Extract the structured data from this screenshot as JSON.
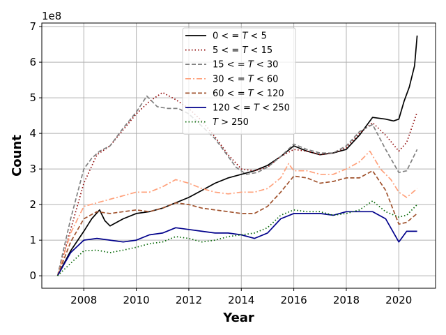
{
  "chart_data": {
    "type": "line",
    "title": "",
    "xlabel": "Year",
    "ylabel": "Count",
    "y_offset_label": "1e8",
    "y_scale": 100000000,
    "xlim": [
      2006.4,
      2021.4
    ],
    "ylim": [
      -0.35,
      7.1
    ],
    "x_ticks": [
      2008,
      2010,
      2012,
      2014,
      2016,
      2018,
      2020
    ],
    "x_tick_labels": [
      "2008",
      "2010",
      "2012",
      "2014",
      "2016",
      "2018",
      "2020"
    ],
    "y_ticks": [
      0,
      1,
      2,
      3,
      4,
      5,
      6,
      7
    ],
    "y_tick_labels": [
      "0",
      "1",
      "2",
      "3",
      "4",
      "5",
      "6",
      "7"
    ],
    "grid": true,
    "legend_position": "top-center",
    "series": [
      {
        "name": "0 < = T < 5",
        "label_main": "0 < = ",
        "label_var": "T",
        "label_tail": " < 5",
        "color": "#000000",
        "style": "solid",
        "x": [
          2007.0,
          2007.5,
          2008.0,
          2008.3,
          2008.6,
          2008.8,
          2009.0,
          2009.5,
          2010.0,
          2010.5,
          2011.0,
          2011.5,
          2012.0,
          2012.5,
          2013.0,
          2013.5,
          2014.0,
          2014.5,
          2015.0,
          2015.5,
          2016.0,
          2016.5,
          2017.0,
          2017.5,
          2018.0,
          2018.5,
          2019.0,
          2019.5,
          2019.8,
          2020.0,
          2020.2,
          2020.4,
          2020.6,
          2020.7
        ],
        "y": [
          0.0,
          0.7,
          1.25,
          1.6,
          1.85,
          1.55,
          1.4,
          1.6,
          1.75,
          1.8,
          1.9,
          2.05,
          2.2,
          2.4,
          2.6,
          2.75,
          2.85,
          2.95,
          3.1,
          3.35,
          3.65,
          3.5,
          3.4,
          3.45,
          3.55,
          3.95,
          4.45,
          4.4,
          4.35,
          4.4,
          4.9,
          5.3,
          5.9,
          6.75
        ]
      },
      {
        "name": "5 < = T < 15",
        "label_main": "5 < = ",
        "label_var": "T",
        "label_tail": " < 15",
        "color": "#8b0000",
        "style": "dotted",
        "x": [
          2007.0,
          2007.5,
          2008.0,
          2008.5,
          2009.0,
          2009.5,
          2010.0,
          2010.5,
          2011.0,
          2011.5,
          2012.0,
          2012.5,
          2013.0,
          2013.5,
          2014.0,
          2014.5,
          2015.0,
          2015.5,
          2016.0,
          2016.5,
          2017.0,
          2017.5,
          2018.0,
          2018.5,
          2019.0,
          2019.5,
          2020.0,
          2020.3,
          2020.7
        ],
        "y": [
          0.0,
          1.3,
          2.6,
          3.4,
          3.65,
          4.1,
          4.55,
          4.9,
          5.15,
          4.95,
          4.7,
          4.35,
          3.9,
          3.4,
          3.0,
          2.95,
          3.05,
          3.35,
          3.55,
          3.5,
          3.4,
          3.45,
          3.6,
          4.0,
          4.3,
          3.95,
          3.5,
          3.75,
          4.6
        ]
      },
      {
        "name": "15 < = T < 30",
        "label_main": "15 < = ",
        "label_var": "T",
        "label_tail": " < 30",
        "color": "#808080",
        "style": "dashed",
        "x": [
          2007.0,
          2007.5,
          2008.0,
          2008.3,
          2008.6,
          2009.0,
          2009.5,
          2010.0,
          2010.4,
          2010.8,
          2011.2,
          2011.6,
          2012.0,
          2012.5,
          2013.0,
          2013.4,
          2013.8,
          2014.2,
          2014.6,
          2015.0,
          2015.5,
          2016.0,
          2016.5,
          2017.0,
          2017.5,
          2018.0,
          2018.5,
          2019.0,
          2019.5,
          2020.0,
          2020.3,
          2020.7
        ],
        "y": [
          0.0,
          1.6,
          3.0,
          3.3,
          3.5,
          3.65,
          4.15,
          4.6,
          5.05,
          4.75,
          4.7,
          4.7,
          4.55,
          4.2,
          3.85,
          3.45,
          3.05,
          2.85,
          2.9,
          3.05,
          3.35,
          3.7,
          3.55,
          3.45,
          3.45,
          3.65,
          4.05,
          4.25,
          3.55,
          2.9,
          2.95,
          3.55
        ]
      },
      {
        "name": "30 < = T < 60",
        "label_main": "30 < = ",
        "label_var": "T",
        "label_tail": " < 60",
        "color": "#ffa07a",
        "style": "dashdot",
        "x": [
          2007.0,
          2007.5,
          2008.0,
          2008.5,
          2009.0,
          2009.5,
          2010.0,
          2010.5,
          2011.0,
          2011.5,
          2012.0,
          2012.5,
          2013.0,
          2013.5,
          2014.0,
          2014.5,
          2015.0,
          2015.5,
          2015.8,
          2016.0,
          2016.5,
          2017.0,
          2017.5,
          2018.0,
          2018.5,
          2018.9,
          2019.3,
          2019.7,
          2020.0,
          2020.3,
          2020.7
        ],
        "y": [
          0.0,
          1.2,
          1.95,
          2.05,
          2.15,
          2.25,
          2.35,
          2.35,
          2.5,
          2.7,
          2.6,
          2.45,
          2.35,
          2.3,
          2.35,
          2.35,
          2.45,
          2.75,
          3.15,
          2.95,
          2.95,
          2.85,
          2.85,
          3.0,
          3.2,
          3.5,
          3.0,
          2.7,
          2.35,
          2.2,
          2.45
        ]
      },
      {
        "name": "60 < = T < 120",
        "label_main": "60 < = ",
        "label_var": "T",
        "label_tail": " < 120",
        "color": "#a0522d",
        "style": "dashed",
        "x": [
          2007.0,
          2007.5,
          2008.0,
          2008.5,
          2009.0,
          2009.5,
          2010.0,
          2010.5,
          2011.0,
          2011.5,
          2012.0,
          2012.5,
          2013.0,
          2013.5,
          2014.0,
          2014.5,
          2015.0,
          2015.5,
          2016.0,
          2016.5,
          2017.0,
          2017.5,
          2018.0,
          2018.5,
          2019.0,
          2019.5,
          2020.0,
          2020.3,
          2020.7
        ],
        "y": [
          0.0,
          0.95,
          1.6,
          1.8,
          1.75,
          1.8,
          1.85,
          1.8,
          1.9,
          2.05,
          2.0,
          1.9,
          1.85,
          1.8,
          1.75,
          1.75,
          1.95,
          2.35,
          2.8,
          2.75,
          2.6,
          2.65,
          2.75,
          2.75,
          2.95,
          2.4,
          1.45,
          1.5,
          1.75
        ]
      },
      {
        "name": "120 < = T < 250",
        "label_main": "120 < = ",
        "label_var": "T",
        "label_tail": " < 250",
        "color": "#00008b",
        "style": "solid",
        "x": [
          2007.0,
          2007.5,
          2008.0,
          2008.5,
          2009.0,
          2009.5,
          2010.0,
          2010.5,
          2011.0,
          2011.5,
          2012.0,
          2012.5,
          2013.0,
          2013.5,
          2014.0,
          2014.5,
          2015.0,
          2015.5,
          2016.0,
          2016.5,
          2017.0,
          2017.5,
          2018.0,
          2018.5,
          2019.0,
          2019.5,
          2020.0,
          2020.3,
          2020.7
        ],
        "y": [
          0.0,
          0.65,
          1.0,
          1.05,
          1.0,
          0.95,
          1.0,
          1.15,
          1.2,
          1.35,
          1.3,
          1.25,
          1.2,
          1.2,
          1.15,
          1.05,
          1.2,
          1.6,
          1.75,
          1.75,
          1.75,
          1.7,
          1.8,
          1.8,
          1.8,
          1.6,
          0.95,
          1.25,
          1.25
        ]
      },
      {
        "name": "T > 250",
        "label_main": "",
        "label_var": "T",
        "label_tail": " > 250",
        "color": "#006400",
        "style": "dotted",
        "x": [
          2007.0,
          2007.5,
          2008.0,
          2008.5,
          2009.0,
          2009.5,
          2010.0,
          2010.5,
          2011.0,
          2011.5,
          2012.0,
          2012.5,
          2013.0,
          2013.5,
          2014.0,
          2014.5,
          2015.0,
          2015.5,
          2016.0,
          2016.5,
          2017.0,
          2017.5,
          2018.0,
          2018.5,
          2019.0,
          2019.5,
          2020.0,
          2020.3,
          2020.7
        ],
        "y": [
          0.0,
          0.35,
          0.7,
          0.72,
          0.65,
          0.72,
          0.8,
          0.9,
          0.95,
          1.1,
          1.05,
          0.95,
          1.0,
          1.1,
          1.15,
          1.2,
          1.35,
          1.7,
          1.85,
          1.8,
          1.8,
          1.7,
          1.75,
          1.85,
          2.1,
          1.8,
          1.65,
          1.7,
          2.0
        ]
      }
    ]
  }
}
